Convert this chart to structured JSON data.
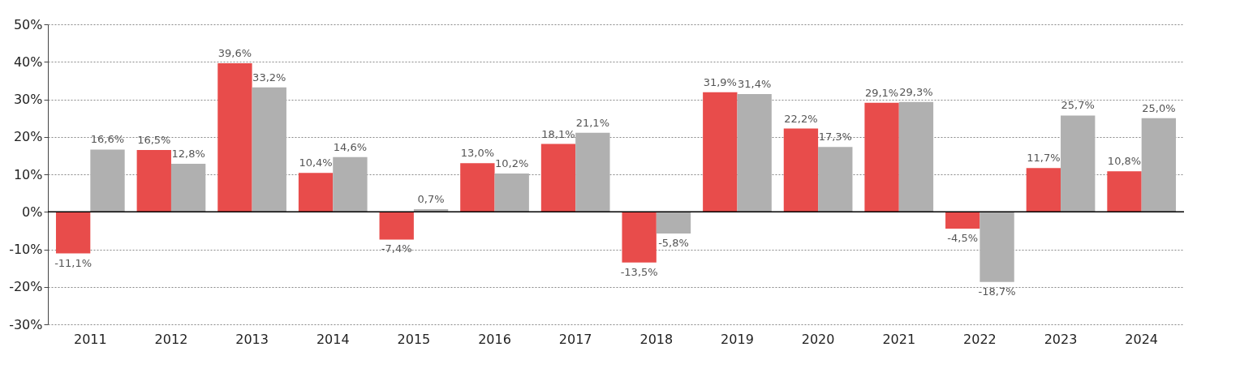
{
  "chart_data": {
    "type": "bar",
    "categories": [
      "2011",
      "2012",
      "2013",
      "2014",
      "2015",
      "2016",
      "2017",
      "2018",
      "2019",
      "2020",
      "2021",
      "2022",
      "2023",
      "2024"
    ],
    "series": [
      {
        "color": "#e84c4b",
        "values": [
          -11.1,
          16.5,
          39.6,
          10.4,
          -7.4,
          13.0,
          18.1,
          -13.5,
          31.9,
          22.2,
          29.1,
          -4.5,
          11.7,
          10.8
        ],
        "value_labels": [
          "-11,1%",
          "16,5%",
          "39,6%",
          "10,4%",
          "-7,4%",
          "13,0%",
          "18,1%",
          "-13,5%",
          "31,9%",
          "22,2%",
          "29,1%",
          "-4,5%",
          "11,7%",
          "10,8%"
        ]
      },
      {
        "color": "#b0b0b0",
        "values": [
          16.6,
          12.8,
          33.2,
          14.6,
          0.7,
          10.2,
          21.1,
          -5.8,
          31.4,
          17.3,
          29.3,
          -18.7,
          25.7,
          25.0
        ],
        "value_labels": [
          "16,6%",
          "12,8%",
          "33,2%",
          "14,6%",
          "0,7%",
          "10,2%",
          "21,1%",
          "-5,8%",
          "31,4%",
          "17,3%",
          "29,3%",
          "-18,7%",
          "25,7%",
          "25,0%"
        ]
      }
    ],
    "ylim": [
      -30,
      50
    ],
    "yticks": [
      {
        "value": -30,
        "label": "-30%"
      },
      {
        "value": -20,
        "label": "-20%"
      },
      {
        "value": -10,
        "label": "-10%"
      },
      {
        "value": 0,
        "label": "0%"
      },
      {
        "value": 10,
        "label": "10%"
      },
      {
        "value": 20,
        "label": "20%"
      },
      {
        "value": 30,
        "label": "30%"
      },
      {
        "value": 40,
        "label": "40%"
      },
      {
        "value": 50,
        "label": "50%"
      }
    ],
    "grid": "y",
    "line_style": "dotted",
    "legend": false,
    "ref_lines": [
      {
        "axis": "y",
        "value": 0,
        "color": "#000000"
      }
    ]
  }
}
